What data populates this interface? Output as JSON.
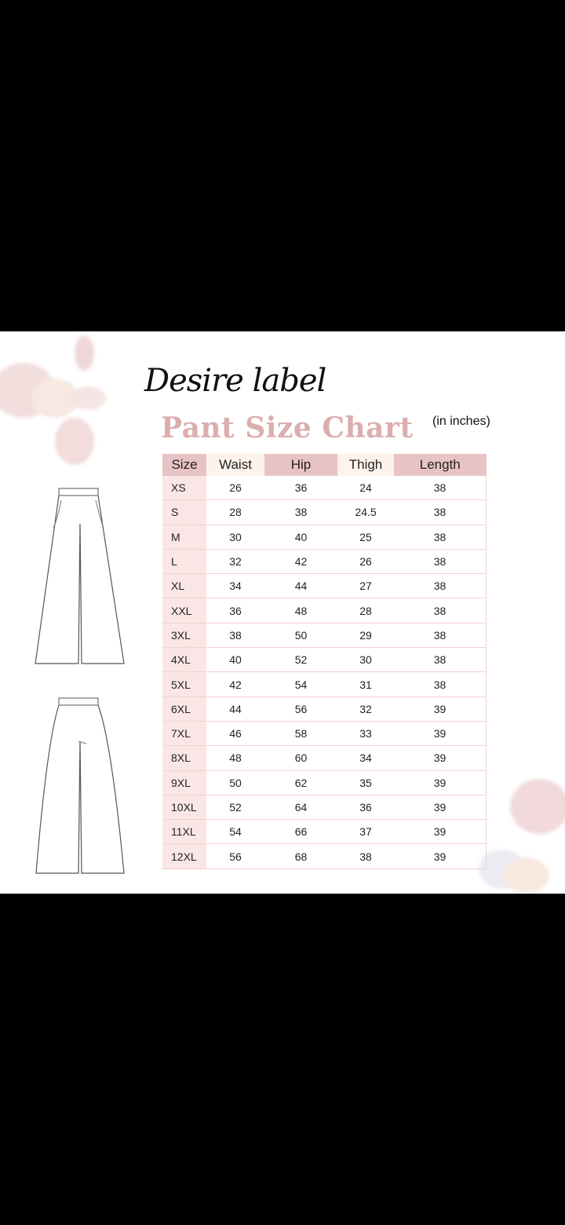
{
  "brand": "Desire label",
  "title": "Pant Size Chart",
  "unit_note": "(in inches)",
  "colors": {
    "header_pink": "#e8c3c5",
    "header_cream": "#fdf3ec",
    "title": "#dcaeae",
    "size_column": "#fbe6e6"
  },
  "table": {
    "headers": [
      "Size",
      "Waist",
      "Hip",
      "Thigh",
      "Length"
    ],
    "rows": [
      [
        "XS",
        "26",
        "36",
        "24",
        "38"
      ],
      [
        "S",
        "28",
        "38",
        "24.5",
        "38"
      ],
      [
        "M",
        "30",
        "40",
        "25",
        "38"
      ],
      [
        "L",
        "32",
        "42",
        "26",
        "38"
      ],
      [
        "XL",
        "34",
        "44",
        "27",
        "38"
      ],
      [
        "XXL",
        "36",
        "48",
        "28",
        "38"
      ],
      [
        "3XL",
        "38",
        "50",
        "29",
        "38"
      ],
      [
        "4XL",
        "40",
        "52",
        "30",
        "38"
      ],
      [
        "5XL",
        "42",
        "54",
        "31",
        "38"
      ],
      [
        "6XL",
        "44",
        "56",
        "32",
        "39"
      ],
      [
        "7XL",
        "46",
        "58",
        "33",
        "39"
      ],
      [
        "8XL",
        "48",
        "60",
        "34",
        "39"
      ],
      [
        "9XL",
        "50",
        "62",
        "35",
        "39"
      ],
      [
        "10XL",
        "52",
        "64",
        "36",
        "39"
      ],
      [
        "11XL",
        "54",
        "66",
        "37",
        "39"
      ],
      [
        "12XL",
        "56",
        "68",
        "38",
        "39"
      ]
    ]
  }
}
